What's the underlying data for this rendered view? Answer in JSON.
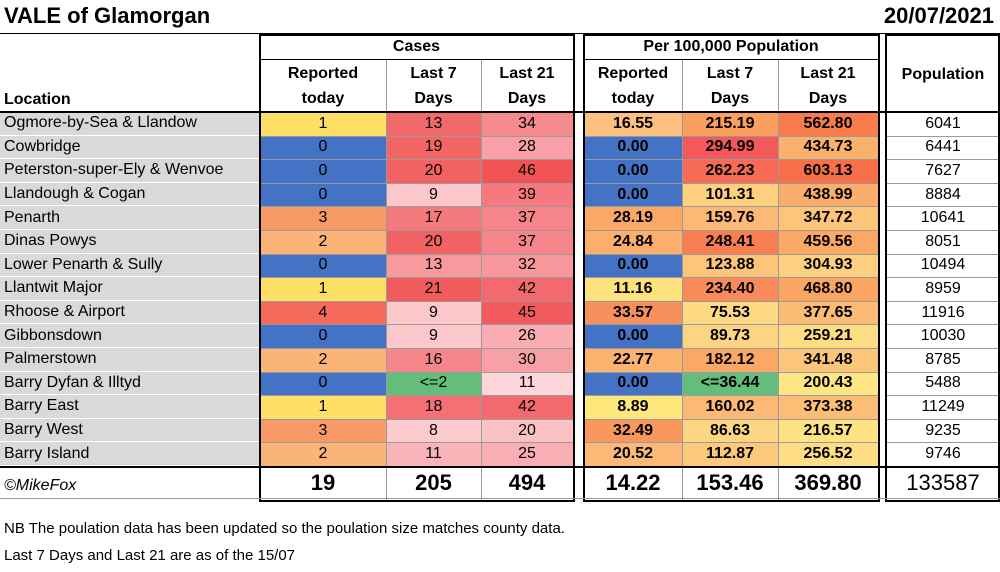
{
  "title": "VALE of Glamorgan",
  "date": "20/07/2021",
  "headers": {
    "location": "Location",
    "cases_group": "Cases",
    "per100k_group": "Per 100,000 Population",
    "population": "Population",
    "reported_line1": "Reported",
    "reported_line2": "today",
    "last7_line1": "Last 7",
    "last7_line2": "Days",
    "last21_line1": "Last 21",
    "last21_line2": "Days"
  },
  "colors": {
    "blue": "#4472c4",
    "yellow": "#ffe066",
    "orange": "#f8a66c",
    "lightorange": "#fbbf7f",
    "red": "#f25a5a",
    "pink": "#f7a3a8",
    "lightpink": "#fcd5d8",
    "green": "#63be7b",
    "gold": "#fcd580"
  },
  "rows": [
    {
      "location": "Ogmore-by-Sea & Llandow",
      "reported": "1",
      "last7": "13",
      "last21": "34",
      "rate_reported": "16.55",
      "rate_last7": "215.19",
      "rate_last21": "562.80",
      "population": "6041",
      "c": [
        "yellow",
        "#f06a6a",
        "#f58a8f",
        "lightorange",
        "#fa9f5e",
        "#f97c4c"
      ]
    },
    {
      "location": "Cowbridge",
      "reported": "0",
      "last7": "19",
      "last21": "28",
      "rate_reported": "0.00",
      "rate_last7": "294.99",
      "rate_last21": "434.73",
      "population": "6441",
      "c": [
        "blue",
        "#f36464",
        "#f8a0a6",
        "blue",
        "#f5585b",
        "#fbb16c"
      ]
    },
    {
      "location": "Peterston-super-Ely & Wenvoe",
      "reported": "0",
      "last7": "20",
      "last21": "46",
      "rate_reported": "0.00",
      "rate_last7": "262.23",
      "rate_last21": "603.13",
      "population": "7627",
      "c": [
        "blue",
        "#f26262",
        "#f05454",
        "blue",
        "#f76b56",
        "#f8704a"
      ]
    },
    {
      "location": "Llandough & Cogan",
      "reported": "0",
      "last7": "9",
      "last21": "39",
      "rate_reported": "0.00",
      "rate_last7": "101.31",
      "rate_last21": "438.99",
      "population": "8884",
      "c": [
        "blue",
        "#fbc7cb",
        "#f47a7f",
        "blue",
        "#fcd07f",
        "#fbae6b"
      ]
    },
    {
      "location": "Penarth",
      "reported": "3",
      "last7": "17",
      "last21": "37",
      "rate_reported": "28.19",
      "rate_last7": "159.76",
      "rate_last21": "347.72",
      "population": "10641",
      "c": [
        "#f79a68",
        "#f57a7e",
        "#f5858a",
        "#f9a866",
        "#fcb975",
        "#fcc57a"
      ]
    },
    {
      "location": "Dinas Powys",
      "reported": "2",
      "last7": "20",
      "last21": "37",
      "rate_reported": "24.84",
      "rate_last7": "248.41",
      "rate_last21": "459.56",
      "population": "8051",
      "c": [
        "#fab477",
        "#f26262",
        "#f5858a",
        "#faaf6d",
        "#f97e52",
        "#fba864"
      ]
    },
    {
      "location": "Lower Penarth & Sully",
      "reported": "0",
      "last7": "13",
      "last21": "32",
      "rate_reported": "0.00",
      "rate_last7": "123.88",
      "rate_last21": "304.93",
      "population": "10494",
      "c": [
        "blue",
        "#f8999e",
        "#f8979c",
        "blue",
        "#fcc57a",
        "#fcd07f"
      ]
    },
    {
      "location": "Llantwit Major",
      "reported": "1",
      "last7": "21",
      "last21": "42",
      "rate_reported": "11.16",
      "rate_last7": "234.40",
      "rate_last21": "468.80",
      "population": "8959",
      "c": [
        "yellow",
        "#f05c5c",
        "#f26a6e",
        "#fde27d",
        "#f98a5a",
        "#fba563"
      ]
    },
    {
      "location": "Rhoose & Airport",
      "reported": "4",
      "last7": "9",
      "last21": "45",
      "rate_reported": "33.57",
      "rate_last7": "75.53",
      "rate_last21": "377.65",
      "population": "11916",
      "c": [
        "#f46b5c",
        "#fbc7cb",
        "#f15b5f",
        "#f7905d",
        "#fdd983",
        "#fcbc75"
      ]
    },
    {
      "location": "Gibbonsdown",
      "reported": "0",
      "last7": "9",
      "last21": "26",
      "rate_reported": "0.00",
      "rate_last7": "89.73",
      "rate_last21": "259.21",
      "population": "10030",
      "c": [
        "blue",
        "#fbc7cb",
        "#f9acb1",
        "blue",
        "#fdd481",
        "#fddd84"
      ]
    },
    {
      "location": "Palmerstown",
      "reported": "2",
      "last7": "16",
      "last21": "30",
      "rate_reported": "22.77",
      "rate_last7": "182.12",
      "rate_last21": "341.48",
      "population": "8785",
      "c": [
        "#fab477",
        "#f6868b",
        "#f7a0a5",
        "#fab470",
        "#fba866",
        "#fcc67a"
      ]
    },
    {
      "location": "Barry Dyfan & Illtyd",
      "reported": "0",
      "last7": "<=2",
      "last21": "11",
      "rate_reported": "0.00",
      "rate_last7": "<=36.44",
      "rate_last21": "200.43",
      "population": "5488",
      "c": [
        "blue",
        "green",
        "lightpink",
        "blue",
        "green",
        "#fde683"
      ]
    },
    {
      "location": "Barry East",
      "reported": "1",
      "last7": "18",
      "last21": "42",
      "rate_reported": "8.89",
      "rate_last7": "160.02",
      "rate_last21": "373.38",
      "population": "11249",
      "c": [
        "yellow",
        "#f57075",
        "#f26a6e",
        "#fee87e",
        "#fcb975",
        "#fcbd76"
      ]
    },
    {
      "location": "Barry West",
      "reported": "3",
      "last7": "8",
      "last21": "20",
      "rate_reported": "32.49",
      "rate_last7": "86.63",
      "rate_last21": "216.57",
      "population": "9235",
      "c": [
        "#f79a68",
        "#fbcbce",
        "#fbc2c6",
        "#f8985f",
        "#fdd683",
        "#fde383"
      ]
    },
    {
      "location": "Barry Island",
      "reported": "2",
      "last7": "11",
      "last21": "25",
      "rate_reported": "20.52",
      "rate_last7": "112.87",
      "rate_last21": "256.52",
      "population": "9746",
      "c": [
        "#fab477",
        "#f9b4b8",
        "#f9aeb3",
        "#fbb877",
        "#fdca7c",
        "#fdde84"
      ]
    }
  ],
  "totals": {
    "credit": "©MikeFox",
    "reported": "19",
    "last7": "205",
    "last21": "494",
    "rate_reported": "14.22",
    "rate_last7": "153.46",
    "rate_last21": "369.80",
    "population": "133587"
  },
  "notes": [
    "NB The poulation data has been updated so the poulation size matches county data.",
    "Last 7 Days and Last 21 are as of the 15/07"
  ]
}
